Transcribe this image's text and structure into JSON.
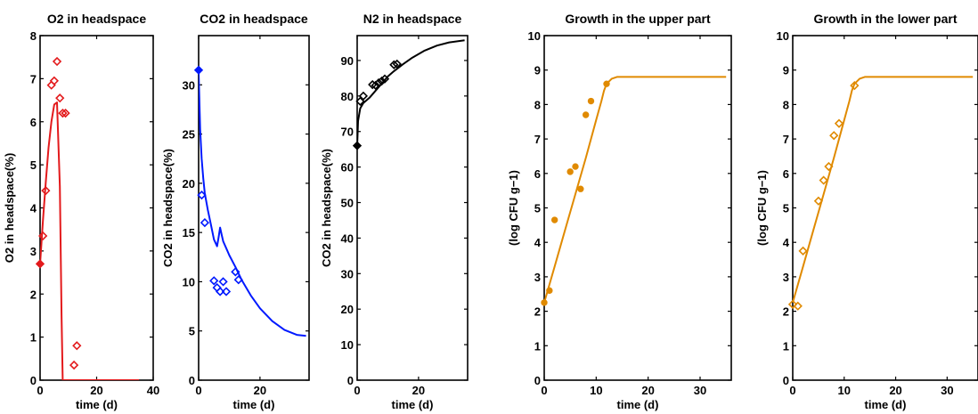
{
  "chart_data": [
    {
      "type": "line",
      "title": "O2 in headspace",
      "xlabel": "time (d)",
      "ylabel": "O2 in headspace(%)",
      "xlim": [
        0,
        40
      ],
      "ylim": [
        0,
        8
      ],
      "xticks": [
        0,
        20,
        40
      ],
      "yticks": [
        0,
        1,
        2,
        3,
        4,
        5,
        6,
        7,
        8
      ],
      "grid": false,
      "series": [
        {
          "role": "model",
          "color": "#e31a1c",
          "x": [
            0,
            1,
            2,
            3,
            4,
            5,
            6,
            7,
            7.6,
            8,
            12,
            20,
            35
          ],
          "y": [
            2.7,
            3.7,
            4.6,
            5.4,
            6.0,
            6.4,
            6.45,
            4.5,
            1.5,
            0,
            0,
            0,
            0
          ]
        },
        {
          "role": "observed-open",
          "color": "#e31a1c",
          "marker": "diamond",
          "x": [
            1,
            2,
            4,
            5,
            6,
            7,
            8,
            9,
            12,
            13
          ],
          "y": [
            3.35,
            4.4,
            6.85,
            6.95,
            7.4,
            6.55,
            6.2,
            6.2,
            0.35,
            0.8
          ]
        },
        {
          "role": "observed-filled",
          "color": "#e31a1c",
          "marker": "diamond",
          "x": [
            0
          ],
          "y": [
            2.7
          ]
        }
      ]
    },
    {
      "type": "line",
      "title": "CO2 in headspace",
      "xlabel": "time (d)",
      "ylabel": "CO2 in headspace(%)",
      "xlim": [
        0,
        36
      ],
      "ylim": [
        0,
        35
      ],
      "xticks": [
        0,
        20
      ],
      "yticks": [
        0,
        5,
        10,
        15,
        20,
        25,
        30
      ],
      "grid": false,
      "series": [
        {
          "role": "model",
          "color": "#0019ff",
          "x": [
            0,
            0.5,
            1,
            1.5,
            2,
            3,
            4,
            5,
            6,
            6.5,
            7,
            7.5,
            8,
            9,
            10,
            12,
            14,
            17,
            20,
            24,
            28,
            32,
            35
          ],
          "y": [
            31.3,
            25.5,
            22.5,
            20.5,
            19.0,
            17.3,
            15.8,
            14.3,
            13.6,
            14.5,
            15.5,
            14.8,
            14.1,
            13.4,
            12.7,
            11.5,
            10.2,
            8.6,
            7.3,
            6.0,
            5.1,
            4.6,
            4.5
          ]
        },
        {
          "role": "observed-open",
          "color": "#0019ff",
          "marker": "diamond",
          "x": [
            1,
            2,
            5,
            6,
            7,
            8,
            9,
            12,
            13
          ],
          "y": [
            18.8,
            16.0,
            10.1,
            9.4,
            9.0,
            10.0,
            9.0,
            11.0,
            10.2
          ]
        },
        {
          "role": "observed-filled",
          "color": "#0019ff",
          "marker": "diamond",
          "x": [
            0
          ],
          "y": [
            31.5
          ]
        }
      ]
    },
    {
      "type": "line",
      "title": "N2 in headspace",
      "xlabel": "time (d)",
      "ylabel": "CO2 in headspace(%)",
      "xlim": [
        0,
        36
      ],
      "ylim": [
        0,
        97
      ],
      "xticks": [
        0,
        20
      ],
      "yticks": [
        0,
        10,
        20,
        30,
        40,
        50,
        60,
        70,
        80,
        90
      ],
      "grid": false,
      "series": [
        {
          "role": "model",
          "color": "#000000",
          "x": [
            0,
            0.3,
            1,
            2,
            4,
            6,
            8,
            10,
            12,
            15,
            18,
            22,
            26,
            30,
            35
          ],
          "y": [
            66,
            73,
            76.5,
            78,
            79.5,
            81.5,
            83.5,
            85.5,
            87,
            89,
            90.8,
            92.8,
            94.2,
            95.1,
            95.7
          ]
        },
        {
          "role": "observed-open",
          "color": "#000000",
          "marker": "diamond",
          "x": [
            1,
            2,
            5,
            6,
            7,
            8,
            9,
            12,
            13
          ],
          "y": [
            78.5,
            80.0,
            83.2,
            83.0,
            83.7,
            84.2,
            84.8,
            88.8,
            89.0
          ]
        },
        {
          "role": "observed-filled",
          "color": "#000000",
          "marker": "diamond",
          "x": [
            0
          ],
          "y": [
            66
          ]
        }
      ]
    },
    {
      "type": "line",
      "title": "Growth in the upper part",
      "xlabel": "time (d)",
      "ylabel": "(log CFU g−1)",
      "xlim": [
        0,
        36
      ],
      "ylim": [
        0,
        10
      ],
      "xticks": [
        0,
        10,
        20,
        30
      ],
      "yticks": [
        0,
        1,
        2,
        3,
        4,
        5,
        6,
        7,
        8,
        9,
        10
      ],
      "grid": false,
      "series": [
        {
          "role": "model",
          "color": "#e08a00",
          "x": [
            0,
            2,
            4,
            6,
            8,
            10,
            11,
            11.5,
            12,
            13,
            14,
            20,
            35
          ],
          "y": [
            2.25,
            3.3,
            4.35,
            5.4,
            6.45,
            7.55,
            8.1,
            8.4,
            8.6,
            8.75,
            8.8,
            8.8,
            8.8
          ]
        },
        {
          "role": "observed-filled",
          "color": "#e08a00",
          "marker": "circle",
          "x": [
            0,
            1,
            2,
            5,
            6,
            7,
            8,
            9,
            12
          ],
          "y": [
            2.25,
            2.6,
            4.65,
            6.05,
            6.2,
            5.55,
            7.7,
            8.1,
            8.6
          ]
        }
      ]
    },
    {
      "type": "line",
      "title": "Growth in the lower part",
      "xlabel": "time (d)",
      "ylabel": "(log CFU g−1)",
      "xlim": [
        0,
        36
      ],
      "ylim": [
        0,
        10
      ],
      "xticks": [
        0,
        10,
        20,
        30
      ],
      "yticks": [
        0,
        1,
        2,
        3,
        4,
        5,
        6,
        7,
        8,
        9,
        10
      ],
      "grid": false,
      "series": [
        {
          "role": "model",
          "color": "#e08a00",
          "x": [
            0,
            2,
            4,
            6,
            8,
            10,
            11,
            11.5,
            12,
            13,
            14,
            20,
            35
          ],
          "y": [
            2.25,
            3.3,
            4.35,
            5.4,
            6.45,
            7.55,
            8.1,
            8.4,
            8.6,
            8.75,
            8.8,
            8.8,
            8.8
          ]
        },
        {
          "role": "observed-open",
          "color": "#e08a00",
          "marker": "diamond",
          "x": [
            0,
            1,
            2,
            5,
            6,
            7,
            8,
            9,
            12
          ],
          "y": [
            2.2,
            2.15,
            3.75,
            5.2,
            5.8,
            6.2,
            7.1,
            7.45,
            8.55
          ]
        }
      ]
    }
  ]
}
